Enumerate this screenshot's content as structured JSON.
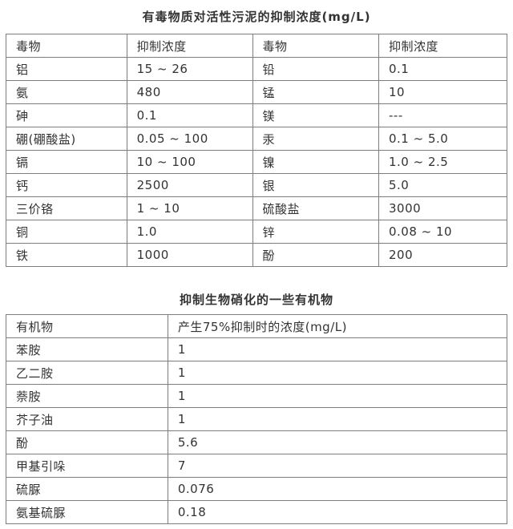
{
  "colors": {
    "text": "#333333",
    "border": "#7d7d7d",
    "background": "#ffffff"
  },
  "table1": {
    "title": "有毒物质对活性污泥的抑制浓度(mg/L)",
    "headers": [
      "毒物",
      "抑制浓度",
      "毒物",
      "抑制浓度"
    ],
    "rows": [
      [
        "铝",
        "15 ~ 26",
        "铅",
        "0.1"
      ],
      [
        "氨",
        "480",
        "锰",
        "10"
      ],
      [
        "砷",
        "0.1",
        "镁",
        "---"
      ],
      [
        "硼(硼酸盐)",
        "0.05 ~ 100",
        "汞",
        "0.1 ~ 5.0"
      ],
      [
        "镉",
        "10 ~ 100",
        "镍",
        "1.0 ~ 2.5"
      ],
      [
        "钙",
        "2500",
        "银",
        "5.0"
      ],
      [
        "三价铬",
        "1 ~ 10",
        "硫酸盐",
        "3000"
      ],
      [
        "铜",
        "1.0",
        "锌",
        "0.08 ~ 10"
      ],
      [
        "铁",
        "1000",
        "酚",
        "200"
      ]
    ]
  },
  "table2": {
    "title": "抑制生物硝化的一些有机物",
    "headers": [
      "有机物",
      "产生75%抑制时的浓度(mg/L)"
    ],
    "rows": [
      [
        "苯胺",
        "1"
      ],
      [
        "乙二胺",
        "1"
      ],
      [
        "萘胺",
        "1"
      ],
      [
        "芥子油",
        "1"
      ],
      [
        "酚",
        "5.6"
      ],
      [
        "甲基引哚",
        "7"
      ],
      [
        "硫脲",
        "0.076"
      ],
      [
        "氨基硫脲",
        "0.18"
      ]
    ]
  }
}
